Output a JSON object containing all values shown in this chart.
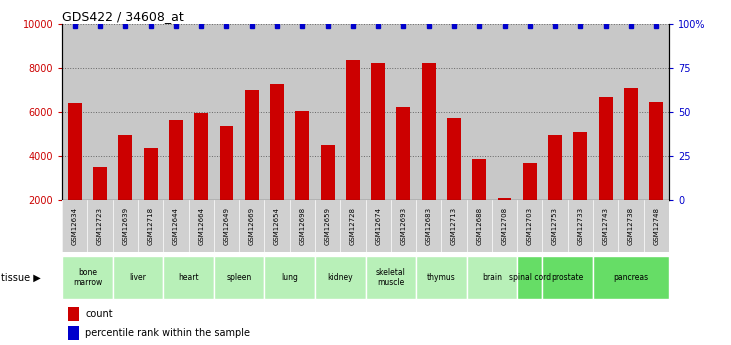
{
  "title": "GDS422 / 34608_at",
  "samples": [
    "GSM12634",
    "GSM12723",
    "GSM12639",
    "GSM12718",
    "GSM12644",
    "GSM12664",
    "GSM12649",
    "GSM12669",
    "GSM12654",
    "GSM12698",
    "GSM12659",
    "GSM12728",
    "GSM12674",
    "GSM12693",
    "GSM12683",
    "GSM12713",
    "GSM12688",
    "GSM12708",
    "GSM12703",
    "GSM12753",
    "GSM12733",
    "GSM12743",
    "GSM12738",
    "GSM12748"
  ],
  "counts": [
    6400,
    3500,
    4950,
    4350,
    5650,
    5950,
    5350,
    7000,
    7300,
    6050,
    4500,
    8350,
    8250,
    6250,
    8250,
    5750,
    3850,
    2100,
    3700,
    4950,
    5100,
    6700,
    7100,
    6450
  ],
  "percentiles": [
    99,
    99,
    99,
    99,
    99,
    99,
    99,
    99,
    99,
    99,
    99,
    99,
    99,
    99,
    99,
    99,
    99,
    99,
    99,
    99,
    99,
    99,
    99,
    99
  ],
  "tissues": [
    {
      "name": "bone\nmarrow",
      "start": 0,
      "end": 2
    },
    {
      "name": "liver",
      "start": 2,
      "end": 4
    },
    {
      "name": "heart",
      "start": 4,
      "end": 6
    },
    {
      "name": "spleen",
      "start": 6,
      "end": 8
    },
    {
      "name": "lung",
      "start": 8,
      "end": 10
    },
    {
      "name": "kidney",
      "start": 10,
      "end": 12
    },
    {
      "name": "skeletal\nmuscle",
      "start": 12,
      "end": 14
    },
    {
      "name": "thymus",
      "start": 14,
      "end": 16
    },
    {
      "name": "brain",
      "start": 16,
      "end": 18
    },
    {
      "name": "spinal cord",
      "start": 18,
      "end": 19
    },
    {
      "name": "prostate",
      "start": 19,
      "end": 21
    },
    {
      "name": "pancreas",
      "start": 21,
      "end": 24
    }
  ],
  "tissue_light_green": "#b8f0b8",
  "tissue_bright_green": "#66dd66",
  "bar_color": "#cc0000",
  "dot_color": "#0000cc",
  "ylim_left": [
    2000,
    10000
  ],
  "ylim_right": [
    0,
    100
  ],
  "yticks_left": [
    2000,
    4000,
    6000,
    8000,
    10000
  ],
  "yticks_right": [
    0,
    25,
    50,
    75,
    100
  ],
  "bg_color": "#c8c8c8",
  "xticklabel_bg": "#d0d0d0"
}
